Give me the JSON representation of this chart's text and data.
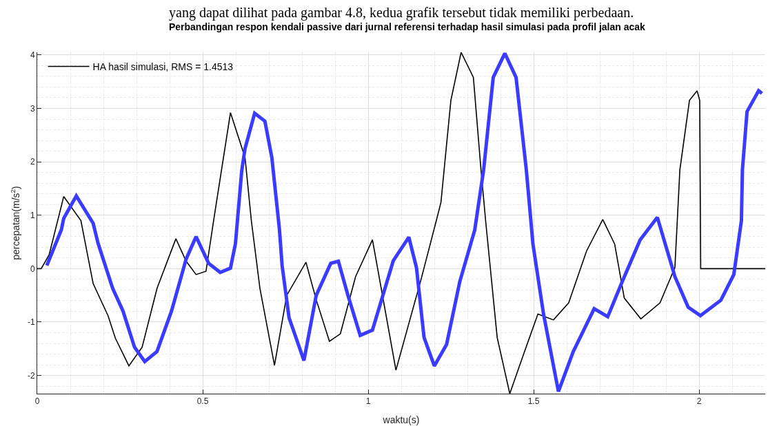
{
  "chart_data": {
    "type": "line",
    "title": "Perbandingan respon kendali passive dari jurnal referensi terhadap hasil simulasi pada profil jalan acak",
    "xlabel": "waktu(s)",
    "ylabel": "percepatan(m/s$^{2}$)",
    "annotations": [
      "yang dapat dilihat pada gambar 4.8, kedua grafik tersebut tidak memiliki perbedaan."
    ],
    "series": [
      {
        "name": "HA hasil simulasi, RMS = 1.4513",
        "color": "#000000",
        "x": [
          0,
          0.012,
          0.036,
          0.08,
          0.132,
          0.169,
          0.214,
          0.236,
          0.277,
          0.317,
          0.362,
          0.419,
          0.45,
          0.48,
          0.51,
          0.533,
          0.584,
          0.628,
          0.647,
          0.673,
          0.717,
          0.754,
          0.812,
          0.843,
          0.883,
          0.916,
          0.962,
          1.013,
          1.084,
          1.16,
          1.206,
          1.22,
          1.25,
          1.281,
          1.318,
          1.341,
          1.355,
          1.39,
          1.428,
          1.467,
          1.513,
          1.56,
          1.606,
          1.66,
          1.709,
          1.745,
          1.774,
          1.824,
          1.882,
          1.927,
          1.942,
          1.971,
          1.994,
          2.002,
          2.005,
          2.2
        ],
        "values": [
          0,
          0,
          0.26,
          1.35,
          0.9,
          -0.28,
          -0.88,
          -1.3,
          -1.82,
          -1.47,
          -0.37,
          0.56,
          0.14,
          -0.11,
          -0.05,
          0.9,
          2.92,
          2.08,
          0.9,
          -0.37,
          -1.81,
          -0.5,
          0.12,
          -0.58,
          -1.36,
          -1.22,
          -0.15,
          0.54,
          -1.9,
          -0.2,
          0.9,
          1.24,
          3.15,
          4.05,
          3.58,
          1.85,
          0.9,
          -1.29,
          -2.34,
          -1.65,
          -0.85,
          -0.96,
          -0.64,
          0.33,
          0.92,
          0.46,
          -0.55,
          -0.94,
          -0.64,
          0.02,
          1.85,
          3.15,
          3.33,
          3.15,
          0,
          0
        ]
      },
      {
        "color": "#3b3bff",
        "x": [
          0.029,
          0.073,
          0.08,
          0.118,
          0.169,
          0.184,
          0.228,
          0.259,
          0.294,
          0.325,
          0.362,
          0.406,
          0.45,
          0.48,
          0.518,
          0.553,
          0.584,
          0.599,
          0.618,
          0.628,
          0.657,
          0.688,
          0.709,
          0.732,
          0.74,
          0.761,
          0.806,
          0.843,
          0.887,
          0.91,
          0.939,
          0.976,
          1.013,
          1.047,
          1.076,
          1.123,
          1.146,
          1.169,
          1.2,
          1.237,
          1.277,
          1.322,
          1.349,
          1.378,
          1.413,
          1.447,
          1.478,
          1.498,
          1.53,
          1.575,
          1.62,
          1.683,
          1.724,
          1.768,
          1.822,
          1.874,
          1.927,
          1.967,
          2.004,
          2.066,
          2.105,
          2.128,
          2.131,
          2.145,
          2.18,
          2.19
        ],
        "values": [
          0.06,
          0.73,
          0.94,
          1.36,
          0.85,
          0.47,
          -0.37,
          -0.79,
          -1.47,
          -1.74,
          -1.55,
          -0.79,
          0.18,
          0.6,
          0.1,
          -0.07,
          0.01,
          0.47,
          1.83,
          2.25,
          2.91,
          2.76,
          2.08,
          0.73,
          0.06,
          -0.92,
          -1.72,
          -0.5,
          0.1,
          0.14,
          -0.5,
          -1.25,
          -1.15,
          -0.45,
          0.15,
          0.59,
          0.02,
          -1.29,
          -1.82,
          -1.42,
          -0.24,
          0.72,
          1.85,
          3.58,
          4.03,
          3.58,
          1.85,
          0.46,
          -0.85,
          -2.3,
          -1.55,
          -0.75,
          -0.9,
          -0.24,
          0.54,
          0.96,
          -0.15,
          -0.72,
          -0.88,
          -0.59,
          -0.11,
          0.9,
          1.85,
          2.94,
          3.33,
          3.28
        ]
      }
    ],
    "xlim": [
      0,
      2.2
    ],
    "xticks": [
      0,
      0.5,
      1,
      1.5,
      2
    ],
    "ylim": [
      -2.34,
      4.05
    ],
    "yticks": [
      -2,
      -1,
      0,
      1,
      2,
      3,
      4
    ],
    "grid": true,
    "legend": "top left",
    "line_style": "solid",
    "marker": "none"
  }
}
